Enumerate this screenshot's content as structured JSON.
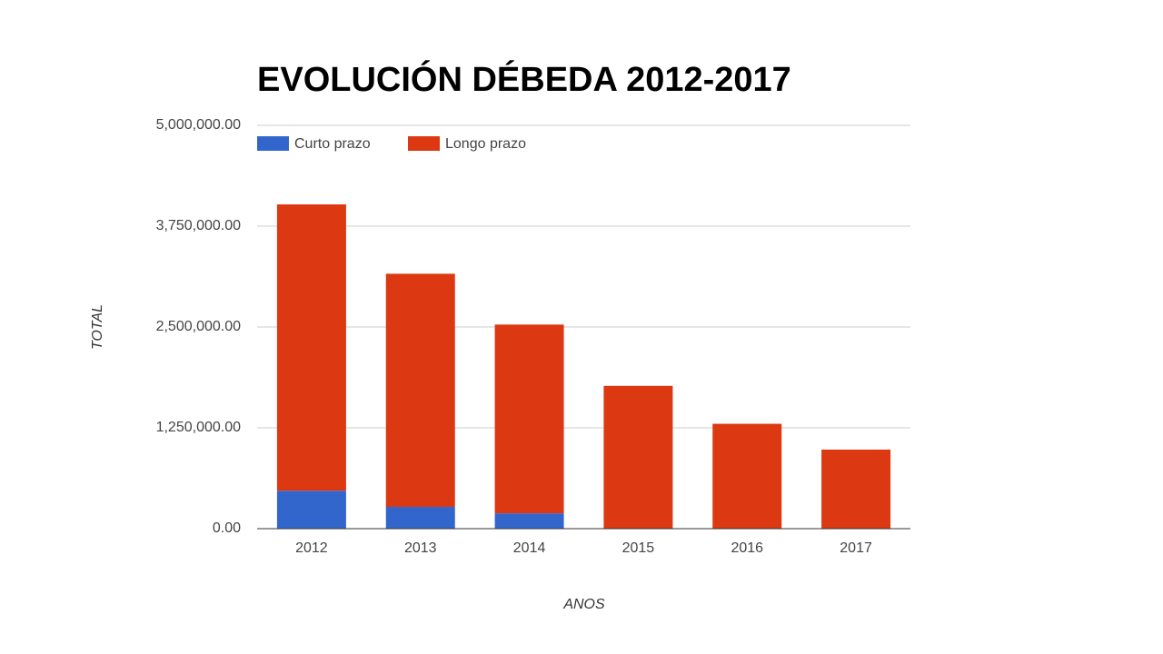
{
  "chart_data": {
    "type": "stacked-bar",
    "title": "EVOLUCIÓN DÉBEDA 2012-2017",
    "x_label": "ANOS",
    "y_label": "TOTAL",
    "categories": [
      "2012",
      "2013",
      "2014",
      "2015",
      "2016",
      "2017"
    ],
    "series": [
      {
        "name": "Curto prazo",
        "color": "#3366cc",
        "values": [
          470000,
          270000,
          190000,
          0,
          0,
          0
        ]
      },
      {
        "name": "Longo prazo",
        "color": "#dc3912",
        "values": [
          3550000,
          2890000,
          2340000,
          1770000,
          1300000,
          980000
        ]
      }
    ],
    "ylim": [
      0,
      5000000
    ],
    "yticks": [
      {
        "value": 0,
        "label": "0.00"
      },
      {
        "value": 1250000,
        "label": "1,250,000.00"
      },
      {
        "value": 2500000,
        "label": "2,500,000.00"
      },
      {
        "value": 3750000,
        "label": "3,750,000.00"
      },
      {
        "value": 5000000,
        "label": "5,000,000.00"
      }
    ],
    "grid": true,
    "legend": "top"
  }
}
